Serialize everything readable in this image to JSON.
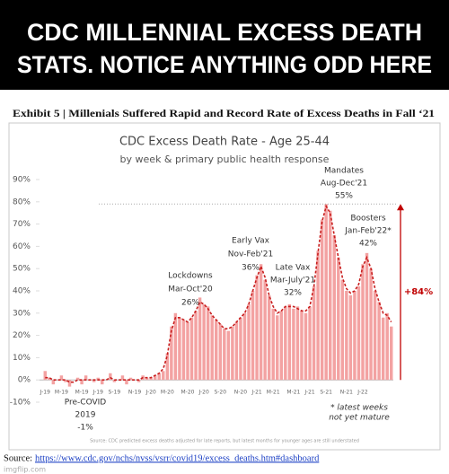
{
  "header": {
    "banner_lines": [
      "CDC MILLENNIAL EXCESS DEATH",
      "STATS. NOTICE ANYTHING ODD HERE"
    ]
  },
  "chart_data": {
    "type": "bar",
    "exhibit": "Exhibit 5 | Millenials Suffered Rapid and Record Rate of Excess Deaths in Fall ‘21",
    "title": "CDC Excess Death Rate - Age 25-44",
    "subtitle": "by week & primary public health response",
    "categories": [
      "J-19",
      null,
      null,
      null,
      "M-19",
      null,
      null,
      null,
      null,
      "M-19",
      null,
      null,
      null,
      "J-19",
      null,
      null,
      null,
      "S-19",
      null,
      null,
      null,
      null,
      "N-19",
      null,
      null,
      null,
      "J-20",
      null,
      null,
      null,
      "M-20",
      null,
      null,
      null,
      null,
      "M-20",
      null,
      null,
      null,
      "J-20",
      null,
      null,
      null,
      "S-20",
      null,
      null,
      null,
      null,
      "N-20",
      null,
      null,
      null,
      "J-21",
      null,
      null,
      null,
      "M-21",
      null,
      null,
      null,
      null,
      "M-21",
      null,
      null,
      null,
      "J-21",
      null,
      null,
      null,
      "S-21",
      null,
      null,
      null,
      null,
      "N-21",
      null,
      null,
      null,
      "J-22",
      null,
      null,
      null,
      null,
      null,
      null,
      null
    ],
    "series": [
      {
        "color": "#f3a2a2",
        "values": [
          4,
          1,
          -2,
          0,
          2,
          -1,
          -3,
          0,
          1,
          -2,
          2,
          0,
          -1,
          1,
          -2,
          0,
          3,
          -1,
          0,
          2,
          -2,
          1,
          0,
          -1,
          2,
          1,
          1,
          2,
          3,
          4,
          12,
          24,
          30,
          28,
          27,
          26,
          28,
          31,
          37,
          34,
          33,
          29,
          27,
          25,
          23,
          22,
          24,
          26,
          28,
          30,
          34,
          40,
          47,
          52,
          45,
          38,
          32,
          29,
          31,
          33,
          34,
          32,
          33,
          31,
          30,
          33,
          42,
          58,
          72,
          79,
          76,
          65,
          55,
          45,
          40,
          38,
          40,
          42,
          52,
          57,
          50,
          40,
          35,
          28,
          30,
          24
        ]
      },
      {
        "type": "line",
        "color": "#c81e1e",
        "values": [
          1,
          1,
          0,
          0,
          0,
          0,
          -1,
          -1,
          0,
          0,
          0,
          0,
          0,
          0,
          0,
          0,
          1,
          0,
          0,
          0,
          0,
          0,
          0,
          0,
          1,
          1,
          1,
          2,
          3,
          5,
          11,
          22,
          28,
          28,
          27,
          26,
          28,
          31,
          35,
          34,
          32,
          29,
          27,
          25,
          23,
          23,
          24,
          26,
          28,
          30,
          34,
          40,
          46,
          51,
          46,
          38,
          33,
          30,
          31,
          33,
          33,
          33,
          32,
          31,
          31,
          33,
          42,
          57,
          71,
          78,
          75,
          65,
          55,
          46,
          41,
          39,
          40,
          43,
          51,
          55,
          50,
          41,
          35,
          30,
          29,
          26
        ]
      }
    ],
    "ylim": [
      -10,
      90
    ],
    "yticks": [
      {
        "value": -10,
        "label": "-10%"
      },
      {
        "value": 0,
        "label": "0%"
      },
      {
        "value": 10,
        "label": "10%"
      },
      {
        "value": 20,
        "label": "20%"
      },
      {
        "value": 30,
        "label": "30%"
      },
      {
        "value": 40,
        "label": "40%"
      },
      {
        "value": 50,
        "label": "50%"
      },
      {
        "value": 60,
        "label": "60%"
      },
      {
        "value": 70,
        "label": "70%"
      },
      {
        "value": 80,
        "label": "80%"
      },
      {
        "value": 90,
        "label": "90%"
      }
    ],
    "grid": false,
    "annotations": [
      {
        "lines": [
          "Pre-COVID",
          "2019",
          "-1%"
        ]
      },
      {
        "lines": [
          "Lockdowns",
          "Mar-Oct'20",
          "26%"
        ]
      },
      {
        "lines": [
          "Early Vax",
          "Nov-Feb'21",
          "36%"
        ]
      },
      {
        "lines": [
          "Late Vax",
          "Mar-July'21",
          "32%"
        ]
      },
      {
        "lines": [
          "Mandates",
          "Aug-Dec'21",
          "55%"
        ]
      },
      {
        "lines": [
          "Boosters",
          "Jan-Feb'22*",
          "42%"
        ]
      },
      {
        "lines": [
          "* latest weeks",
          "not yet mature"
        ]
      }
    ],
    "change_label": "+84%",
    "footnote": "Source: CDC predicted excess deaths adjusted for late reports, but latest months for younger ages are still understated"
  },
  "source": {
    "label": "Source:",
    "url": "https://www.cdc.gov/nchs/nvss/vsrr/covid19/excess_deaths.htm#dashboard"
  },
  "watermark": "imgflip.com"
}
